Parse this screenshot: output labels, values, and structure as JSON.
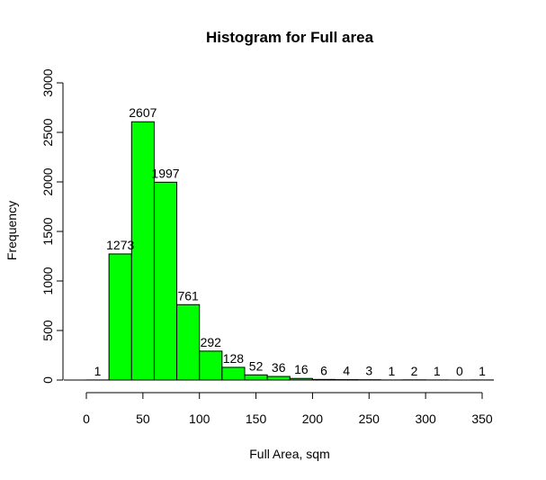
{
  "chart_data": {
    "type": "bar",
    "title": "Histogram for Full area",
    "xlabel": "Full Area, sqm",
    "ylabel": "Frequency",
    "bar_color": "#00ff00",
    "bin_edges": [
      0,
      20,
      40,
      60,
      80,
      100,
      120,
      140,
      160,
      180,
      200,
      220,
      240,
      260,
      280,
      300,
      320,
      340,
      360
    ],
    "values": [
      1,
      1273,
      2607,
      1997,
      761,
      292,
      128,
      52,
      36,
      16,
      6,
      4,
      3,
      1,
      2,
      1,
      0,
      1
    ],
    "labels": [
      "1",
      "1273",
      "2607",
      "1997",
      "761",
      "292",
      "128",
      "52",
      "36",
      "16",
      "6",
      "4",
      "3",
      "1",
      "2",
      "1",
      "0",
      "1"
    ],
    "xlim": [
      0,
      360
    ],
    "ylim": [
      0,
      3000
    ],
    "xticks": [
      0,
      50,
      100,
      150,
      200,
      250,
      300,
      350
    ],
    "xtick_labels": [
      "0",
      "50",
      "100",
      "150",
      "200",
      "250",
      "300",
      "350"
    ],
    "yticks": [
      0,
      500,
      1000,
      1500,
      2000,
      2500,
      3000
    ],
    "ytick_labels": [
      "0",
      "500",
      "1000",
      "1500",
      "2000",
      "2500",
      "3000"
    ]
  }
}
